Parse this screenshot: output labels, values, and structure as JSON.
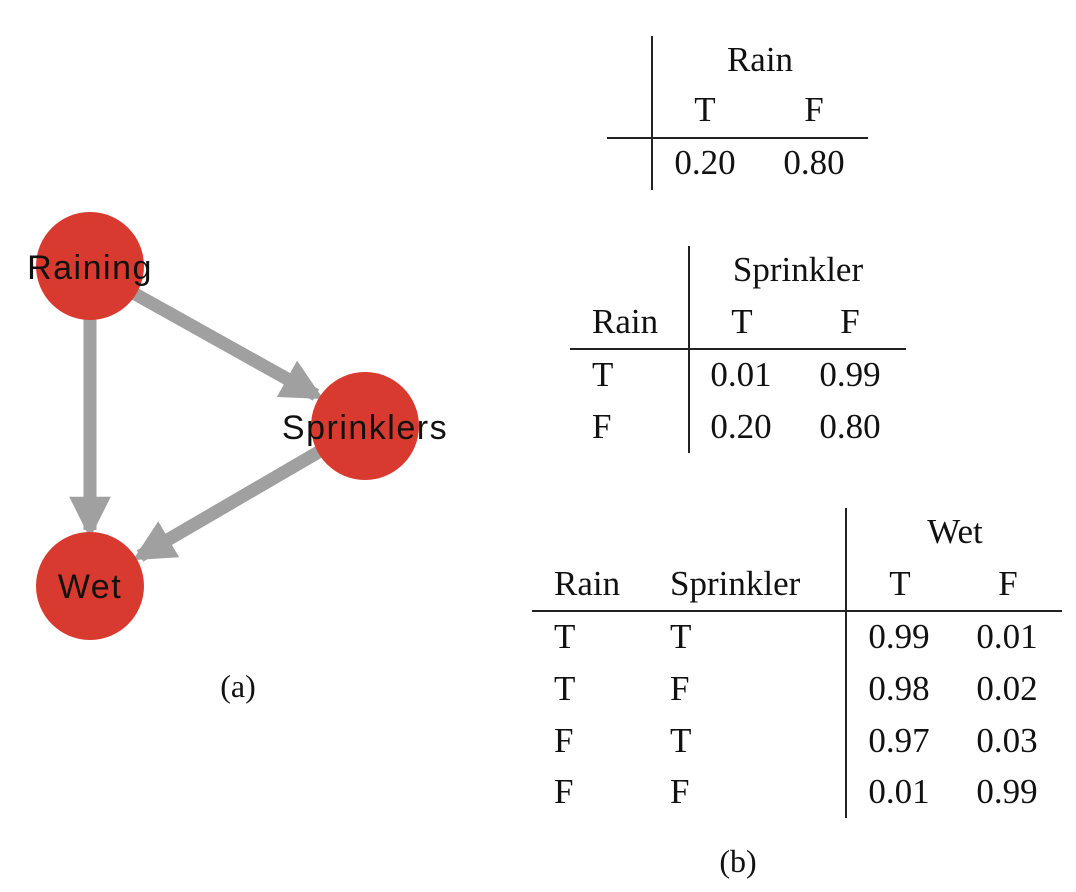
{
  "graph": {
    "node_color": "#D93A2F",
    "edge_color": "#A0A0A0",
    "nodes": [
      {
        "id": "raining",
        "label": "Raining"
      },
      {
        "id": "sprinklers",
        "label": "Sprinklers"
      },
      {
        "id": "wet",
        "label": "Wet"
      }
    ],
    "edges": [
      {
        "from": "raining",
        "to": "sprinklers"
      },
      {
        "from": "raining",
        "to": "wet"
      },
      {
        "from": "sprinklers",
        "to": "wet"
      }
    ],
    "caption": "(a)"
  },
  "tables": {
    "rain": {
      "header": "Rain",
      "columns": [
        "T",
        "F"
      ],
      "values": [
        "0.20",
        "0.80"
      ]
    },
    "sprinkler": {
      "header": "Sprinkler",
      "row_header": "Rain",
      "columns": [
        "T",
        "F"
      ],
      "rows": [
        {
          "label": "T",
          "values": [
            "0.01",
            "0.99"
          ]
        },
        {
          "label": "F",
          "values": [
            "0.20",
            "0.80"
          ]
        }
      ]
    },
    "wet": {
      "header": "Wet",
      "row_headers": [
        "Rain",
        "Sprinkler"
      ],
      "columns": [
        "T",
        "F"
      ],
      "rows": [
        {
          "rain": "T",
          "sprinkler": "T",
          "values": [
            "0.99",
            "0.01"
          ]
        },
        {
          "rain": "T",
          "sprinkler": "F",
          "values": [
            "0.98",
            "0.02"
          ]
        },
        {
          "rain": "F",
          "sprinkler": "T",
          "values": [
            "0.97",
            "0.03"
          ]
        },
        {
          "rain": "F",
          "sprinkler": "F",
          "values": [
            "0.01",
            "0.99"
          ]
        }
      ]
    },
    "caption": "(b)"
  }
}
